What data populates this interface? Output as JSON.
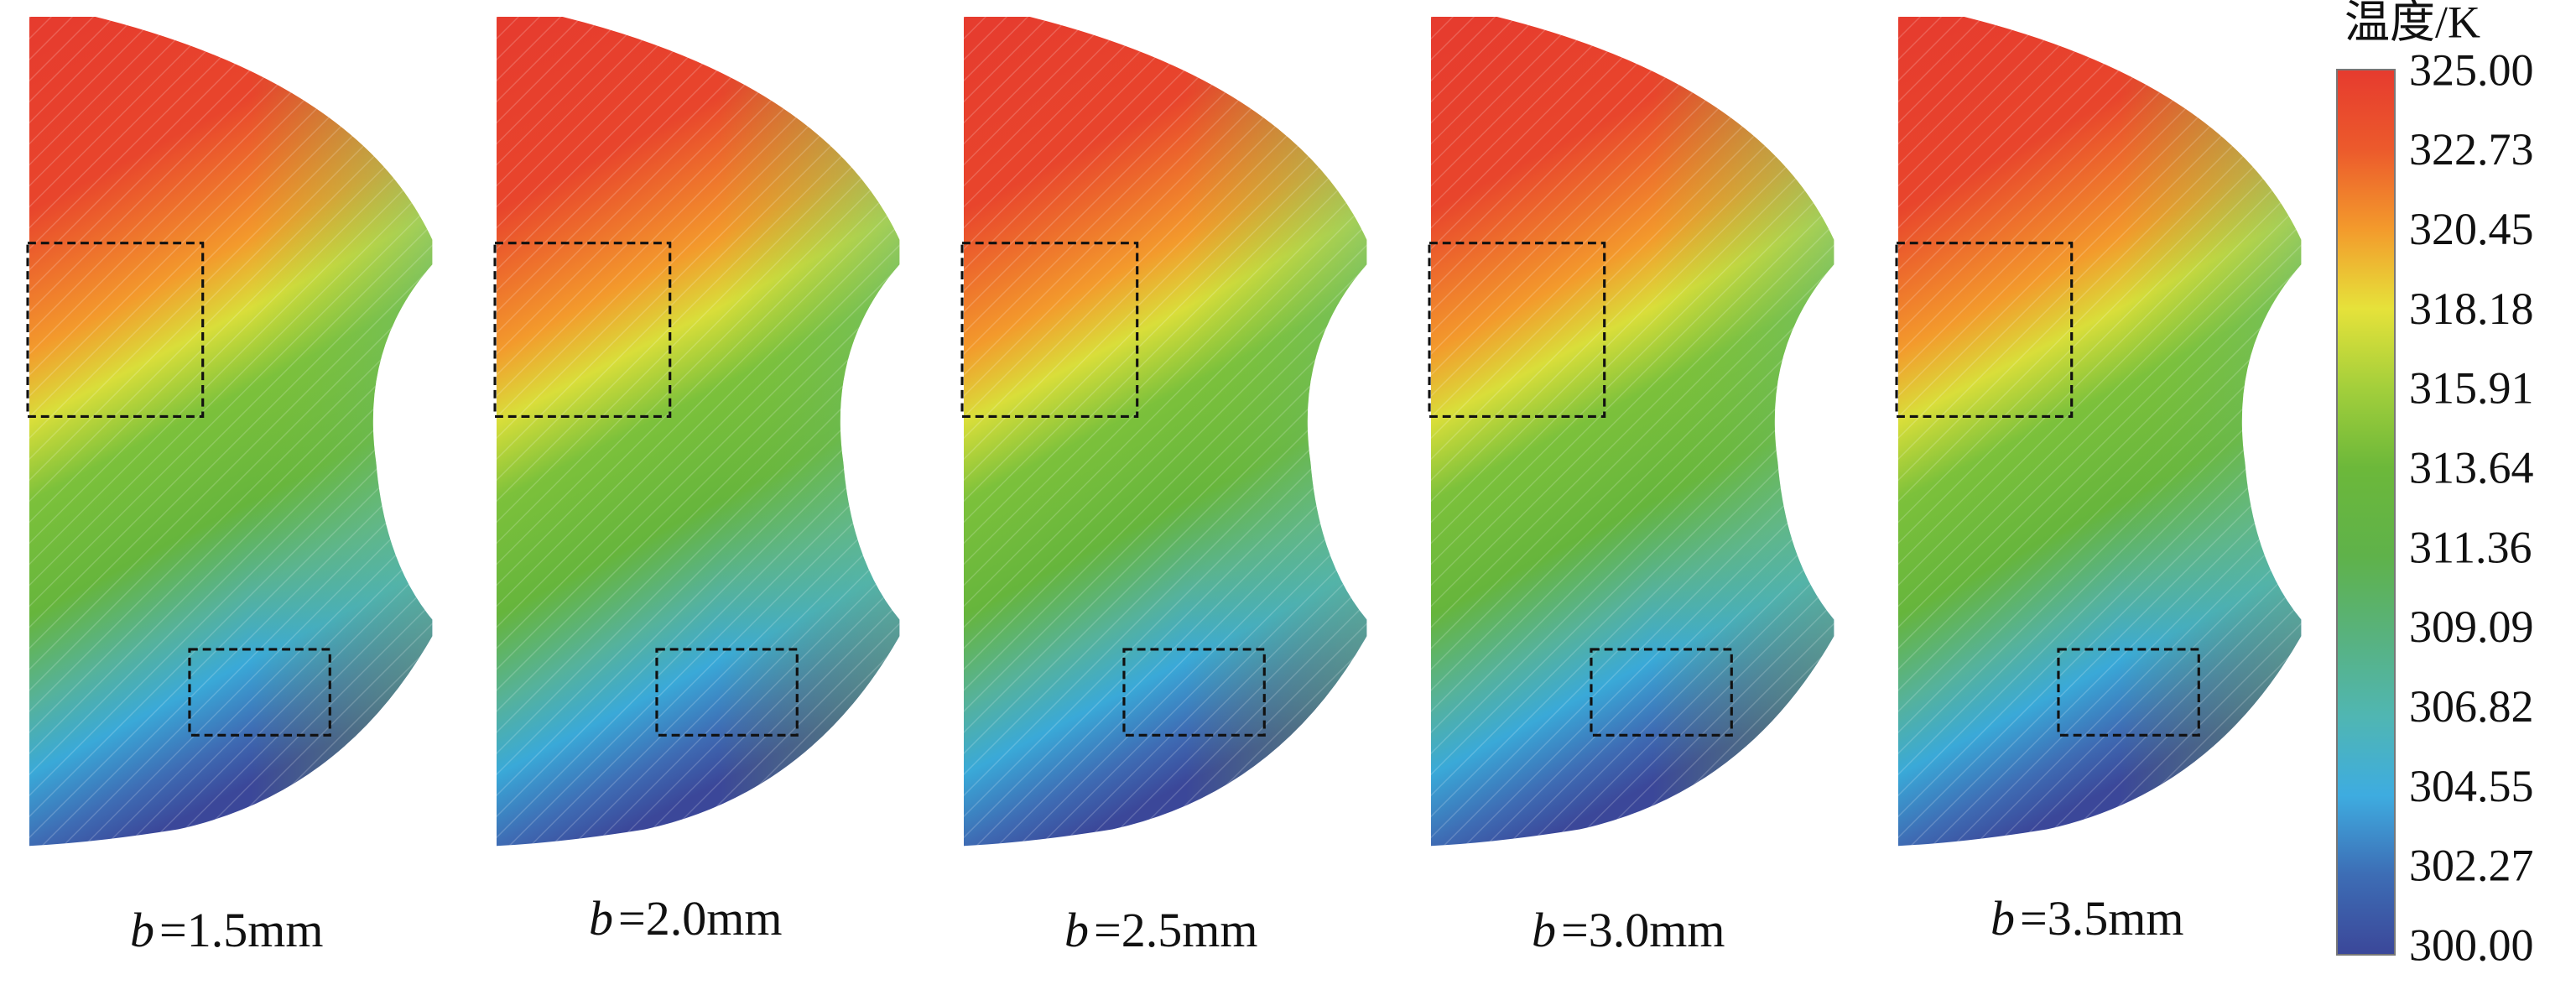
{
  "panels": [
    {
      "var": "b",
      "value": "=1.5mm"
    },
    {
      "var": "b",
      "value": "=2.0mm"
    },
    {
      "var": "b",
      "value": "=2.5mm"
    },
    {
      "var": "b",
      "value": "=3.0mm"
    },
    {
      "var": "b",
      "value": "=3.5mm"
    }
  ],
  "colorbar": {
    "title": "温度/K",
    "ticks": [
      "325.00",
      "322.73",
      "320.45",
      "318.18",
      "315.91",
      "313.64",
      "311.36",
      "309.09",
      "306.82",
      "304.55",
      "302.27",
      "300.00"
    ]
  }
}
